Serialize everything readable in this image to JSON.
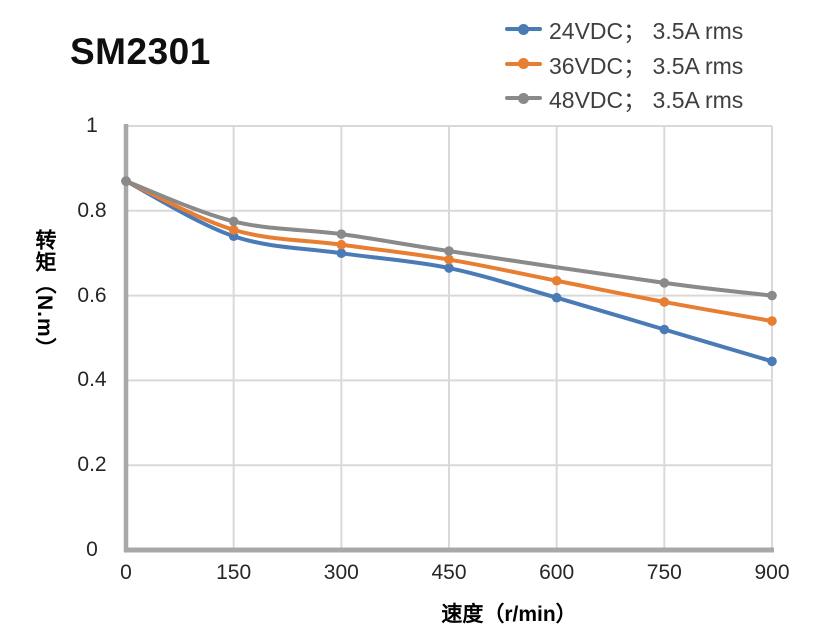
{
  "chart_data": {
    "type": "line",
    "title": "SM2301",
    "xlabel": "速度（r/min）",
    "ylabel": "转矩（N.m）",
    "xlim": [
      0,
      900
    ],
    "ylim": [
      0,
      1
    ],
    "x_ticks": [
      0,
      150,
      300,
      450,
      600,
      750,
      900
    ],
    "y_ticks": [
      0,
      0.2,
      0.4,
      0.6,
      0.8,
      1
    ],
    "grid": true,
    "legend_position": "top-right",
    "series": [
      {
        "name": "24VDC； 3.5A rms",
        "color": "#4A7BB7",
        "points": [
          [
            0,
            0.87
          ],
          [
            150,
            0.74
          ],
          [
            300,
            0.7
          ],
          [
            450,
            0.665
          ],
          [
            600,
            0.595
          ],
          [
            750,
            0.52
          ],
          [
            900,
            0.445
          ]
        ]
      },
      {
        "name": "36VDC； 3.5A rms",
        "color": "#E87E32",
        "points": [
          [
            0,
            0.87
          ],
          [
            150,
            0.755
          ],
          [
            300,
            0.72
          ],
          [
            450,
            0.685
          ],
          [
            600,
            0.635
          ],
          [
            750,
            0.585
          ],
          [
            900,
            0.54
          ]
        ]
      },
      {
        "name": "48VDC； 3.5A rms",
        "color": "#8A8A8A",
        "points": [
          [
            0,
            0.87
          ],
          [
            150,
            0.775
          ],
          [
            300,
            0.745
          ],
          [
            450,
            0.705
          ],
          [
            750,
            0.63
          ],
          [
            900,
            0.6
          ]
        ]
      }
    ],
    "colors": {
      "grid": "#D9D9D9",
      "axis": "#A8A8A8",
      "tick_text": "#262626",
      "legend_text": "#3F3F3F"
    }
  }
}
